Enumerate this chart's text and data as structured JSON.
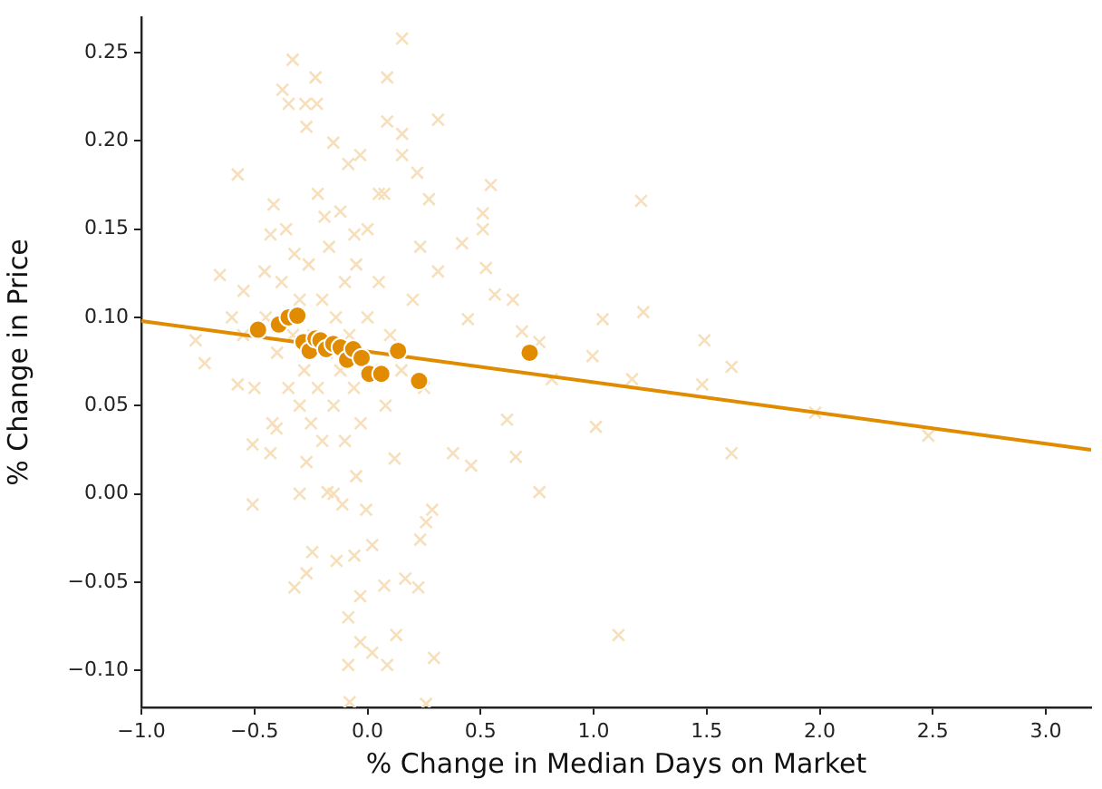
{
  "chart_data": {
    "type": "scatter",
    "xlabel": "% Change in Median Days on Market",
    "ylabel": "% Change in Price",
    "xlim": [
      -1,
      3.2
    ],
    "ylim": [
      -0.121,
      0.27
    ],
    "xticks": [
      {
        "value": -1,
        "label": "−1.0"
      },
      {
        "value": -0.5,
        "label": "−0.5"
      },
      {
        "value": 0,
        "label": "0.0"
      },
      {
        "value": 0.5,
        "label": "0.5"
      },
      {
        "value": 1,
        "label": "1.0"
      },
      {
        "value": 1.5,
        "label": "1.5"
      },
      {
        "value": 2,
        "label": "2.0"
      },
      {
        "value": 2.5,
        "label": "2.5"
      },
      {
        "value": 3,
        "label": "3.0"
      }
    ],
    "yticks": [
      {
        "value": -0.1,
        "label": "−0.10"
      },
      {
        "value": -0.05,
        "label": "−0.05"
      },
      {
        "value": 0,
        "label": "0.00"
      },
      {
        "value": 0.05,
        "label": "0.05"
      },
      {
        "value": 0.1,
        "label": "0.10"
      },
      {
        "value": 0.15,
        "label": "0.15"
      },
      {
        "value": 0.2,
        "label": "0.20"
      },
      {
        "value": 0.25,
        "label": "0.25"
      }
    ],
    "grid": false,
    "series": [
      {
        "type": "scatter",
        "marker": "cross",
        "color": "#f6dfba",
        "x": [
          1.21,
          1.04,
          1.22,
          0.76,
          0.995,
          1.49,
          1.61,
          0.815,
          1.17,
          1.48,
          1.98,
          2.48,
          1.01,
          1.61,
          0.76,
          1.11,
          0.153,
          -0.331,
          -0.23,
          0.087,
          -0.376,
          -0.349,
          -0.224,
          -0.275,
          0.087,
          0.312,
          -0.27,
          0.153,
          -0.151,
          -0.032,
          -0.574,
          -0.085,
          0.153,
          0.22,
          0.545,
          0.51,
          0.51,
          0.272,
          0.074,
          -0.415,
          -0.429,
          -0.323,
          -0.19,
          -0.058,
          0.233,
          0.312,
          0.418,
          0.524,
          0.563,
          0.643,
          -0.653,
          -0.548,
          -0.455,
          -0.76,
          -0.72,
          -0.574,
          -0.508,
          -0.429,
          -0.508,
          -0.402,
          -0.27,
          -0.177,
          -0.111,
          -0.006,
          0.286,
          0.233,
          0.259,
          -0.244,
          -0.27,
          -0.323,
          -0.137,
          -0.058,
          0.021,
          0.074,
          0.167,
          0.225,
          -0.085,
          -0.032,
          0.127,
          -0.032,
          0.021,
          -0.085,
          0.087,
          0.294,
          -0.079,
          0.259,
          0.656,
          0.617,
          0.458,
          0.378,
          0.683,
          0.444,
          -0.45,
          -0.4,
          -0.38,
          -0.35,
          -0.33,
          -0.3,
          -0.3,
          -0.28,
          -0.26,
          -0.25,
          -0.24,
          -0.22,
          -0.2,
          -0.2,
          -0.18,
          -0.17,
          -0.15,
          -0.14,
          -0.12,
          -0.1,
          -0.1,
          -0.08,
          -0.06,
          -0.05,
          -0.03,
          0,
          0.02,
          0.05,
          0.08,
          0.1,
          0.15,
          0.2,
          -0.5,
          -0.55,
          -0.42,
          -0.36,
          -0.22,
          -0.12,
          0,
          -0.05,
          0.12,
          -0.3,
          -0.6,
          0.25,
          -0.15,
          0.05
        ],
        "values": [
          0.166,
          0.099,
          0.103,
          0.086,
          0.078,
          0.087,
          0.072,
          0.065,
          0.065,
          0.062,
          0.046,
          0.033,
          0.038,
          0.023,
          0.001,
          -0.08,
          0.258,
          0.246,
          0.236,
          0.236,
          0.229,
          0.221,
          0.221,
          0.221,
          0.211,
          0.212,
          0.208,
          0.204,
          0.199,
          0.192,
          0.181,
          0.187,
          0.192,
          0.182,
          0.175,
          0.159,
          0.15,
          0.167,
          0.17,
          0.164,
          0.147,
          0.136,
          0.157,
          0.147,
          0.14,
          0.126,
          0.142,
          0.128,
          0.113,
          0.11,
          0.124,
          0.115,
          0.126,
          0.087,
          0.074,
          0.062,
          0.028,
          0.023,
          -0.006,
          0.037,
          0.018,
          0.001,
          -0.006,
          -0.009,
          -0.009,
          -0.026,
          -0.016,
          -0.033,
          -0.045,
          -0.053,
          -0.038,
          -0.035,
          -0.029,
          -0.052,
          -0.048,
          -0.053,
          -0.07,
          -0.058,
          -0.08,
          -0.084,
          -0.09,
          -0.097,
          -0.097,
          -0.093,
          -0.118,
          -0.119,
          0.021,
          0.042,
          0.016,
          0.023,
          0.092,
          0.099,
          0.1,
          0.08,
          0.12,
          0.06,
          0.09,
          0.11,
          0.05,
          0.07,
          0.13,
          0.04,
          0.09,
          0.06,
          0.11,
          0.03,
          0.08,
          0.14,
          0.05,
          0.1,
          0.07,
          0.12,
          0.03,
          0.09,
          0.06,
          0.13,
          0.04,
          0.1,
          0.07,
          0.12,
          0.05,
          0.09,
          0.07,
          0.11,
          0.06,
          0.09,
          0.04,
          0.15,
          0.17,
          0.16,
          0.15,
          0.01,
          0.02,
          0,
          0.1,
          0.06,
          0,
          0.17
        ]
      },
      {
        "type": "scatter",
        "marker": "circle",
        "color": "#e08b00",
        "x": [
          -0.484,
          -0.392,
          -0.349,
          -0.31,
          -0.283,
          -0.256,
          -0.23,
          -0.208,
          -0.183,
          -0.151,
          -0.119,
          -0.09,
          -0.063,
          -0.026,
          0.008,
          0.061,
          0.135,
          0.228,
          0.717
        ],
        "values": [
          0.093,
          0.096,
          0.1,
          0.101,
          0.086,
          0.081,
          0.088,
          0.087,
          0.082,
          0.085,
          0.083,
          0.076,
          0.082,
          0.077,
          0.068,
          0.068,
          0.081,
          0.064,
          0.08
        ]
      },
      {
        "type": "line",
        "color": "#e08b00",
        "marker": "none",
        "x": [
          -1,
          3.2
        ],
        "values": [
          0.098,
          0.025
        ]
      }
    ]
  }
}
